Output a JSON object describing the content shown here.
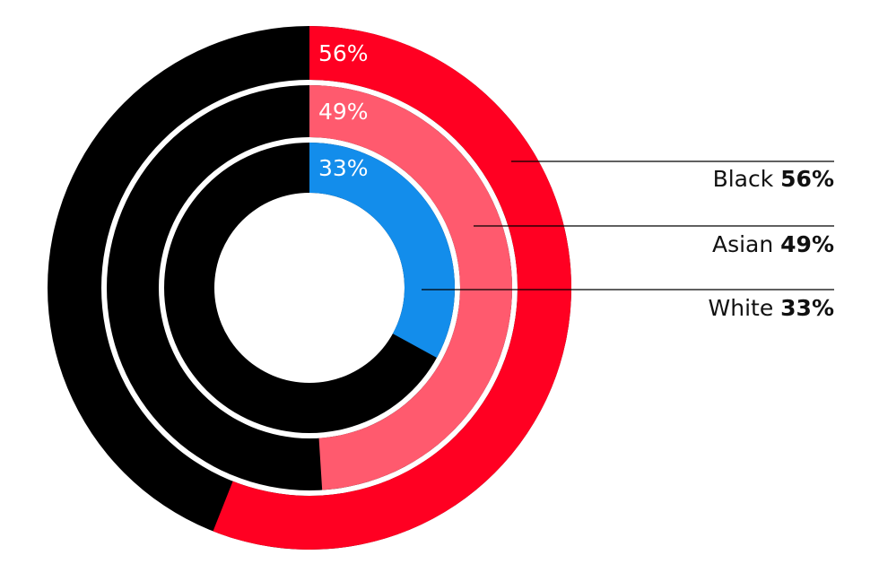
{
  "chart_data": {
    "type": "radial-donut",
    "title": "",
    "track_color": "#000000",
    "series": [
      {
        "name": "Black",
        "value": 56,
        "label": "56%",
        "value_label": "56%",
        "color": "#ff0022"
      },
      {
        "name": "Asian",
        "value": 49,
        "label": "49%",
        "value_label": "49%",
        "color": "#ff5a6e"
      },
      {
        "name": "White",
        "value": 33,
        "label": "33%",
        "value_label": "33%",
        "color": "#138deb"
      }
    ]
  }
}
